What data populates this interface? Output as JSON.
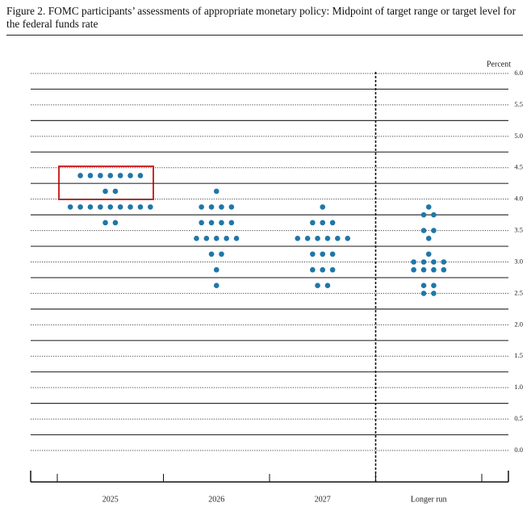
{
  "chart_data": {
    "type": "dot",
    "title": "Figure 2.  FOMC participants’ assessments of appropriate monetary policy: Midpoint of target range or target level for the federal funds rate",
    "y_label": "Percent",
    "categories": [
      "2025",
      "2026",
      "2027",
      "Longer run"
    ],
    "values": [
      [
        4.375,
        4.375,
        4.375,
        4.375,
        4.375,
        4.375,
        4.375,
        4.125,
        4.125,
        3.875,
        3.875,
        3.875,
        3.875,
        3.875,
        3.875,
        3.875,
        3.875,
        3.875,
        3.625,
        3.625
      ],
      [
        4.125,
        3.875,
        3.875,
        3.875,
        3.875,
        3.625,
        3.625,
        3.625,
        3.625,
        3.375,
        3.375,
        3.375,
        3.375,
        3.375,
        3.125,
        3.125,
        2.875,
        2.625
      ],
      [
        3.875,
        3.625,
        3.625,
        3.625,
        3.375,
        3.375,
        3.375,
        3.375,
        3.375,
        3.375,
        3.125,
        3.125,
        3.125,
        2.875,
        2.875,
        2.875,
        2.625,
        2.625
      ],
      [
        3.875,
        3.75,
        3.75,
        3.5,
        3.5,
        3.375,
        3.125,
        3.0,
        3.0,
        3.0,
        3.0,
        2.875,
        2.875,
        2.875,
        2.875,
        2.625,
        2.625,
        2.5,
        2.5
      ]
    ],
    "color": "#1f77a8",
    "ylim": [
      0,
      6
    ],
    "yticks": [
      {
        "value": 0,
        "label": "0.0"
      },
      {
        "value": 0.5,
        "label": "0.5"
      },
      {
        "value": 1,
        "label": "1.0"
      },
      {
        "value": 1.5,
        "label": "1.5"
      },
      {
        "value": 2,
        "label": "2.0"
      },
      {
        "value": 2.5,
        "label": "2.5"
      },
      {
        "value": 3,
        "label": "3.0"
      },
      {
        "value": 3.5,
        "label": "3.5"
      },
      {
        "value": 4,
        "label": "4.0"
      },
      {
        "value": 4.5,
        "label": "4.5"
      },
      {
        "value": 5,
        "label": "5.0"
      },
      {
        "value": 5.5,
        "label": "5.5"
      },
      {
        "value": 6,
        "label": "6.0"
      }
    ],
    "minor_yticks": [
      0.25,
      0.75,
      1.25,
      1.75,
      2.25,
      2.75,
      3.25,
      3.75,
      4.25,
      4.75,
      5.25,
      5.75
    ],
    "grid": true
  }
}
